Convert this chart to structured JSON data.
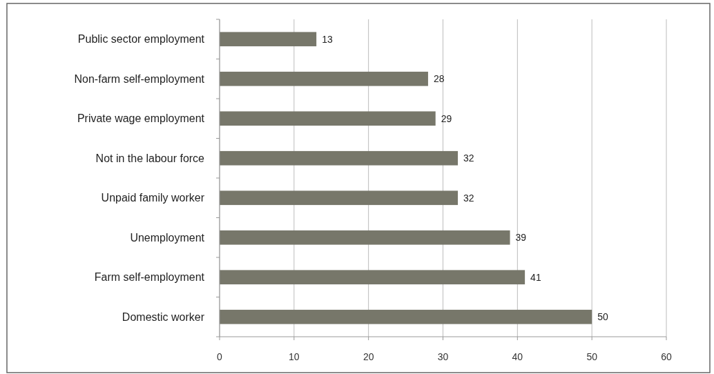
{
  "chart_data": {
    "type": "bar",
    "orientation": "horizontal",
    "categories": [
      "Public sector employment",
      "Non-farm self-employment",
      "Private wage employment",
      "Not in the labour force",
      "Unpaid family worker",
      "Unemployment",
      "Farm self-employment",
      "Domestic worker"
    ],
    "values": [
      13,
      28,
      29,
      32,
      32,
      39,
      41,
      50
    ],
    "color": "#77776a",
    "xlim": [
      0,
      60
    ],
    "xticks": [
      0,
      10,
      20,
      30,
      40,
      50,
      60
    ],
    "grid": "x",
    "data_labels": true
  }
}
